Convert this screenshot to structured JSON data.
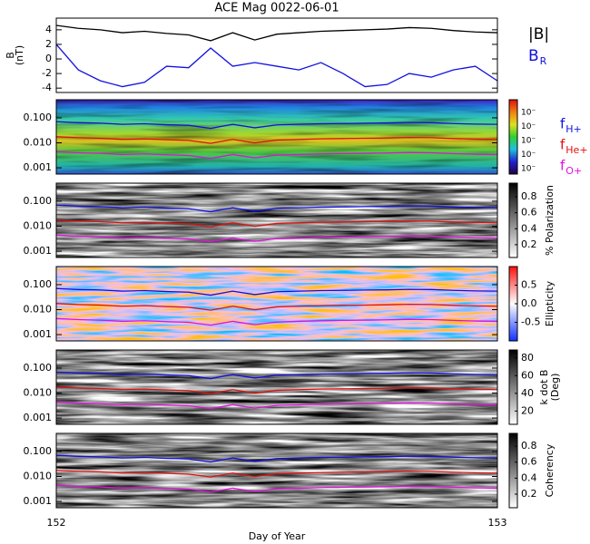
{
  "chart_data": [
    {
      "type": "line",
      "title": "ACE Mag 0022-06-01",
      "ylabel": [
        "B",
        "(nT)"
      ],
      "x": [
        152,
        152.05,
        152.1,
        152.15,
        152.2,
        152.25,
        152.3,
        152.35,
        152.4,
        152.45,
        152.5,
        152.55,
        152.6,
        152.65,
        152.7,
        152.75,
        152.8,
        152.85,
        152.9,
        152.95,
        153
      ],
      "xlim": [
        152,
        153
      ],
      "ylim": [
        -4.6,
        5.6
      ],
      "yticks": [
        4,
        2,
        0,
        -2,
        -4
      ],
      "series": [
        {
          "name": "|B|",
          "color": "#000000",
          "values": [
            4.6,
            4.2,
            4.0,
            3.6,
            3.8,
            3.5,
            3.3,
            2.5,
            3.6,
            2.6,
            3.4,
            3.6,
            3.8,
            3.9,
            4.0,
            4.1,
            4.3,
            4.2,
            3.9,
            3.7,
            3.6
          ]
        },
        {
          "name": "B",
          "name_sub": "R",
          "color": "#1010e0",
          "values": [
            2.0,
            -1.5,
            -3.0,
            -3.8,
            -3.2,
            -1.0,
            -1.2,
            1.5,
            -1.0,
            -0.5,
            -1.0,
            -1.5,
            -0.5,
            -2.0,
            -3.8,
            -3.5,
            -2.0,
            -2.5,
            -1.5,
            -1.0,
            -3.0
          ]
        }
      ]
    },
    {
      "type": "spectrogram",
      "cbar_labels": [
        "10⁻",
        "10⁻",
        "10⁻",
        "10⁻",
        "10⁻"
      ],
      "colormap": [
        "#200040",
        "#2020d0",
        "#20c0e0",
        "#30d030",
        "#e0e020",
        "#f08010",
        "#e01010"
      ],
      "x": [
        152,
        152.05,
        152.1,
        152.15,
        152.2,
        152.25,
        152.3,
        152.35,
        152.4,
        152.45,
        152.5,
        152.55,
        152.6,
        152.65,
        152.7,
        152.75,
        152.8,
        152.85,
        152.9,
        152.95,
        153
      ],
      "xlim": [
        152,
        153
      ],
      "ylim": [
        0.00056,
        0.53
      ],
      "log_scale": true,
      "yticks": [
        {
          "value": 0.1,
          "label": "0.100"
        },
        {
          "value": 0.01,
          "label": "0.010"
        },
        {
          "value": 0.001,
          "label": "0.001"
        }
      ],
      "series": [
        {
          "name": "f",
          "name_sub": "H+",
          "color": "#1010e0",
          "values": [
            0.07,
            0.064,
            0.061,
            0.055,
            0.058,
            0.053,
            0.05,
            0.038,
            0.055,
            0.04,
            0.052,
            0.055,
            0.058,
            0.059,
            0.061,
            0.062,
            0.065,
            0.064,
            0.059,
            0.056,
            0.055
          ]
        },
        {
          "name": "f",
          "name_sub": "He+",
          "color": "#e01010",
          "values": [
            0.0175,
            0.016,
            0.0152,
            0.0137,
            0.0144,
            0.0133,
            0.0125,
            0.0095,
            0.0137,
            0.0099,
            0.0129,
            0.0137,
            0.0144,
            0.0148,
            0.0152,
            0.0156,
            0.0163,
            0.016,
            0.0148,
            0.0141,
            0.0137
          ]
        },
        {
          "name": "f",
          "name_sub": "O+",
          "color": "#e010e0",
          "values": [
            0.0044,
            0.004,
            0.0038,
            0.0034,
            0.0036,
            0.0033,
            0.0031,
            0.0024,
            0.0034,
            0.0025,
            0.0032,
            0.0034,
            0.0036,
            0.0037,
            0.0038,
            0.0039,
            0.0041,
            0.004,
            0.0037,
            0.0035,
            0.0034
          ]
        }
      ]
    },
    {
      "type": "spectrogram",
      "colorbar_label": [
        "% Polarization"
      ],
      "clim": [
        0.04,
        0.97
      ],
      "cticks": [
        0.8,
        0.6,
        0.4,
        0.2
      ],
      "colormap": [
        "#ffffff",
        "#000000"
      ],
      "x": [
        152,
        152.05,
        152.1,
        152.15,
        152.2,
        152.25,
        152.3,
        152.35,
        152.4,
        152.45,
        152.5,
        152.55,
        152.6,
        152.65,
        152.7,
        152.75,
        152.8,
        152.85,
        152.9,
        152.95,
        153
      ],
      "xlim": [
        152,
        153
      ],
      "ylim": [
        0.00056,
        0.53
      ],
      "log_scale": true,
      "yticks": [
        {
          "value": 0.1,
          "label": "0.100"
        },
        {
          "value": 0.01,
          "label": "0.010"
        },
        {
          "value": 0.001,
          "label": "0.001"
        }
      ],
      "series": [
        {
          "color": "#1010e0",
          "values": [
            0.07,
            0.064,
            0.061,
            0.055,
            0.058,
            0.053,
            0.05,
            0.038,
            0.055,
            0.04,
            0.052,
            0.055,
            0.058,
            0.059,
            0.061,
            0.062,
            0.065,
            0.064,
            0.059,
            0.056,
            0.055
          ]
        },
        {
          "color": "#e01010",
          "values": [
            0.0175,
            0.016,
            0.0152,
            0.0137,
            0.0144,
            0.0133,
            0.0125,
            0.0095,
            0.0137,
            0.0099,
            0.0129,
            0.0137,
            0.0144,
            0.0148,
            0.0152,
            0.0156,
            0.0163,
            0.016,
            0.0148,
            0.0141,
            0.0137
          ]
        },
        {
          "color": "#e010e0",
          "values": [
            0.0044,
            0.004,
            0.0038,
            0.0034,
            0.0036,
            0.0033,
            0.0031,
            0.0024,
            0.0034,
            0.0025,
            0.0032,
            0.0034,
            0.0036,
            0.0037,
            0.0038,
            0.0039,
            0.0041,
            0.004,
            0.0037,
            0.0035,
            0.0034
          ]
        }
      ]
    },
    {
      "type": "spectrogram",
      "colorbar_label": [
        "Ellipticity"
      ],
      "clim": [
        -1,
        1
      ],
      "cticks": [
        0.5,
        {
          "value": 0,
          "label": "0.0"
        },
        -0.5
      ],
      "colormap": [
        "#1030ff",
        "#ffffff",
        "#ff1010"
      ],
      "x": [
        152,
        152.05,
        152.1,
        152.15,
        152.2,
        152.25,
        152.3,
        152.35,
        152.4,
        152.45,
        152.5,
        152.55,
        152.6,
        152.65,
        152.7,
        152.75,
        152.8,
        152.85,
        152.9,
        152.95,
        153
      ],
      "xlim": [
        152,
        153
      ],
      "ylim": [
        0.00056,
        0.53
      ],
      "log_scale": true,
      "yticks": [
        {
          "value": 0.1,
          "label": "0.100"
        },
        {
          "value": 0.01,
          "label": "0.010"
        },
        {
          "value": 0.001,
          "label": "0.001"
        }
      ],
      "series": [
        {
          "color": "#1010e0",
          "values": [
            0.07,
            0.064,
            0.061,
            0.055,
            0.058,
            0.053,
            0.05,
            0.038,
            0.055,
            0.04,
            0.052,
            0.055,
            0.058,
            0.059,
            0.061,
            0.062,
            0.065,
            0.064,
            0.059,
            0.056,
            0.055
          ]
        },
        {
          "color": "#e01010",
          "values": [
            0.0175,
            0.016,
            0.0152,
            0.0137,
            0.0144,
            0.0133,
            0.0125,
            0.0095,
            0.0137,
            0.0099,
            0.0129,
            0.0137,
            0.0144,
            0.0148,
            0.0152,
            0.0156,
            0.0163,
            0.016,
            0.0148,
            0.0141,
            0.0137
          ]
        },
        {
          "color": "#e010e0",
          "values": [
            0.0044,
            0.004,
            0.0038,
            0.0034,
            0.0036,
            0.0033,
            0.0031,
            0.0024,
            0.0034,
            0.0025,
            0.0032,
            0.0034,
            0.0036,
            0.0037,
            0.0038,
            0.0039,
            0.0041,
            0.004,
            0.0037,
            0.0035,
            0.0034
          ]
        }
      ]
    },
    {
      "type": "spectrogram",
      "colorbar_label": [
        "k dot B",
        "(Deg)"
      ],
      "clim": [
        5,
        89
      ],
      "cticks": [
        80,
        60,
        40,
        20
      ],
      "colormap": [
        "#ffffff",
        "#000000"
      ],
      "x": [
        152,
        152.05,
        152.1,
        152.15,
        152.2,
        152.25,
        152.3,
        152.35,
        152.4,
        152.45,
        152.5,
        152.55,
        152.6,
        152.65,
        152.7,
        152.75,
        152.8,
        152.85,
        152.9,
        152.95,
        153
      ],
      "xlim": [
        152,
        153
      ],
      "ylim": [
        0.00056,
        0.53
      ],
      "log_scale": true,
      "yticks": [
        {
          "value": 0.1,
          "label": "0.100"
        },
        {
          "value": 0.01,
          "label": "0.010"
        },
        {
          "value": 0.001,
          "label": "0.001"
        }
      ],
      "series": [
        {
          "color": "#1010e0",
          "values": [
            0.07,
            0.064,
            0.061,
            0.055,
            0.058,
            0.053,
            0.05,
            0.038,
            0.055,
            0.04,
            0.052,
            0.055,
            0.058,
            0.059,
            0.061,
            0.062,
            0.065,
            0.064,
            0.059,
            0.056,
            0.055
          ]
        },
        {
          "color": "#e01010",
          "values": [
            0.0175,
            0.016,
            0.0152,
            0.0137,
            0.0144,
            0.0133,
            0.0125,
            0.0095,
            0.0137,
            0.0099,
            0.0129,
            0.0137,
            0.0144,
            0.0148,
            0.0152,
            0.0156,
            0.0163,
            0.016,
            0.0148,
            0.0141,
            0.0137
          ]
        },
        {
          "color": "#e010e0",
          "values": [
            0.0044,
            0.004,
            0.0038,
            0.0034,
            0.0036,
            0.0033,
            0.0031,
            0.0024,
            0.0034,
            0.0025,
            0.0032,
            0.0034,
            0.0036,
            0.0037,
            0.0038,
            0.0039,
            0.0041,
            0.004,
            0.0037,
            0.0035,
            0.0034
          ]
        }
      ]
    },
    {
      "type": "spectrogram",
      "colorbar_label": [
        "Coherency"
      ],
      "clim": [
        0.03,
        0.96
      ],
      "cticks": [
        0.8,
        0.6,
        0.4,
        0.2
      ],
      "colormap": [
        "#ffffff",
        "#000000"
      ],
      "xlabel": "Day of Year",
      "xticks": [
        152,
        153
      ],
      "x": [
        152,
        152.05,
        152.1,
        152.15,
        152.2,
        152.25,
        152.3,
        152.35,
        152.4,
        152.45,
        152.5,
        152.55,
        152.6,
        152.65,
        152.7,
        152.75,
        152.8,
        152.85,
        152.9,
        152.95,
        153
      ],
      "xlim": [
        152,
        153
      ],
      "ylim": [
        0.00056,
        0.53
      ],
      "log_scale": true,
      "yticks": [
        {
          "value": 0.1,
          "label": "0.100"
        },
        {
          "value": 0.01,
          "label": "0.010"
        },
        {
          "value": 0.001,
          "label": "0.001"
        }
      ],
      "series": [
        {
          "color": "#1010e0",
          "values": [
            0.07,
            0.064,
            0.061,
            0.055,
            0.058,
            0.053,
            0.05,
            0.038,
            0.055,
            0.04,
            0.052,
            0.055,
            0.058,
            0.059,
            0.061,
            0.062,
            0.065,
            0.064,
            0.059,
            0.056,
            0.055
          ]
        },
        {
          "color": "#e01010",
          "values": [
            0.0175,
            0.016,
            0.0152,
            0.0137,
            0.0144,
            0.0133,
            0.0125,
            0.0095,
            0.0137,
            0.0099,
            0.0129,
            0.0137,
            0.0144,
            0.0148,
            0.0152,
            0.0156,
            0.0163,
            0.016,
            0.0148,
            0.0141,
            0.0137
          ]
        },
        {
          "color": "#e010e0",
          "values": [
            0.0044,
            0.004,
            0.0038,
            0.0034,
            0.0036,
            0.0033,
            0.0031,
            0.0024,
            0.0034,
            0.0025,
            0.0032,
            0.0034,
            0.0036,
            0.0037,
            0.0038,
            0.0039,
            0.0041,
            0.004,
            0.0037,
            0.0035,
            0.0034
          ]
        }
      ]
    }
  ]
}
